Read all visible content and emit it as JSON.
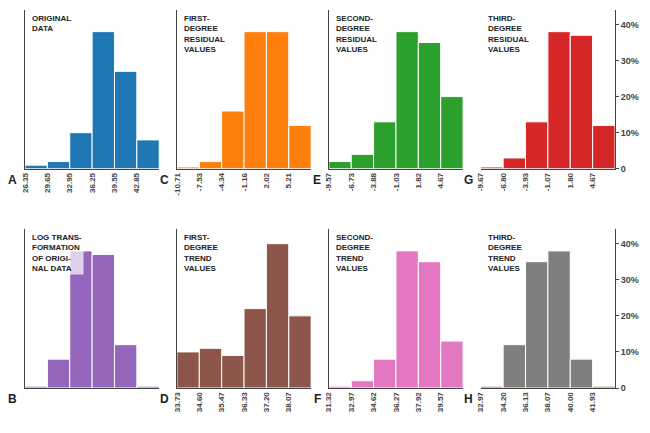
{
  "chart_data": [
    {
      "type": "histogram",
      "title": "ORIGINAL\nDATA",
      "annotations": [
        "A"
      ],
      "bins": [
        "26.35",
        "29.65",
        "32.95",
        "36.25",
        "39.55",
        "42.85",
        null
      ],
      "values": [
        1,
        2,
        10,
        38,
        27,
        8
      ],
      "ylim": [
        0,
        44
      ],
      "grid": false,
      "tick_labels": "x"
    },
    {
      "type": "histogram",
      "title": "FIRST-\nDEGREE\nRESIDUAL\nVALUES",
      "annotations": [
        "C"
      ],
      "bins": [
        "-10.71",
        "-7.53",
        "-4.34",
        "-1.16",
        "2.02",
        "5.21",
        null
      ],
      "values": [
        0.5,
        2,
        16,
        38,
        38,
        12
      ],
      "ylim": [
        0,
        44
      ],
      "grid": false,
      "tick_labels": "x"
    },
    {
      "type": "histogram",
      "title": "SECOND-\nDEGREE\nRESIDUAL\nVALUES",
      "annotations": [
        "E"
      ],
      "bins": [
        "-9.57",
        "-6.73",
        "-3.88",
        "-1.03",
        "1.82",
        "4.67",
        null
      ],
      "values": [
        2,
        4,
        13,
        38,
        35,
        20
      ],
      "ylim": [
        0,
        44
      ],
      "grid": false,
      "tick_labels": "x"
    },
    {
      "type": "histogram",
      "title": "THIRD-\nDEGREE\nRESIDUAL\nVALUES",
      "annotations": [
        "G"
      ],
      "bins": [
        "-9.67",
        "-6.80",
        "-3.93",
        "-1.07",
        "1.80",
        "4.67",
        null
      ],
      "values": [
        0.5,
        3,
        13,
        38,
        37,
        12
      ],
      "ylim": [
        0,
        44
      ],
      "yticks": [
        0,
        {
          "value": 10,
          "label": "10%"
        },
        {
          "value": 20,
          "label": "20%"
        },
        {
          "value": 30,
          "label": "30%"
        },
        {
          "value": 40,
          "label": "40%"
        }
      ],
      "grid": false
    },
    {
      "type": "histogram",
      "title": "LOG TRANS-\nFORMATION\nOF ORIGI-\nNAL DATA",
      "annotations": [
        "B"
      ],
      "bins": [
        null,
        null,
        null,
        null,
        null,
        null,
        null
      ],
      "values": [
        0.5,
        8,
        38,
        37,
        12,
        0.5
      ],
      "ylim": [
        0,
        44
      ],
      "grid": false,
      "tick_labels": false
    },
    {
      "type": "histogram",
      "title": "FIRST-\nDEGREE\nTREND\nVALUES",
      "annotations": [
        "D"
      ],
      "bins": [
        "33.73",
        "34.60",
        "35.47",
        "36.33",
        "37.20",
        "38.07",
        null
      ],
      "values": [
        10,
        11,
        9,
        22,
        40,
        20
      ],
      "ylim": [
        0,
        44
      ],
      "grid": false,
      "tick_labels": "x"
    },
    {
      "type": "histogram",
      "title": "SECOND-\nDEGREE\nTREND\nVALUES",
      "annotations": [
        "F"
      ],
      "bins": [
        "31.32",
        "32.97",
        "34.62",
        "36.27",
        "37.92",
        "39.57",
        null
      ],
      "values": [
        0.5,
        2,
        8,
        38,
        35,
        13
      ],
      "ylim": [
        0,
        44
      ],
      "grid": false,
      "tick_labels": "x"
    },
    {
      "type": "histogram",
      "title": "THIRD-\nDEGREE\nTREND\nVALUES",
      "annotations": [
        "H"
      ],
      "bins": [
        "32.97",
        "34.20",
        "36.13",
        "38.07",
        "40.00",
        "41.93",
        null
      ],
      "values": [
        0.5,
        12,
        35,
        38,
        8,
        0.5
      ],
      "ylim": [
        0,
        44
      ],
      "yticks": [
        0,
        {
          "value": 10,
          "label": "10%"
        },
        {
          "value": 20,
          "label": "20%"
        },
        {
          "value": 30,
          "label": "30%"
        },
        {
          "value": 40,
          "label": "40%"
        }
      ],
      "grid": false
    }
  ]
}
